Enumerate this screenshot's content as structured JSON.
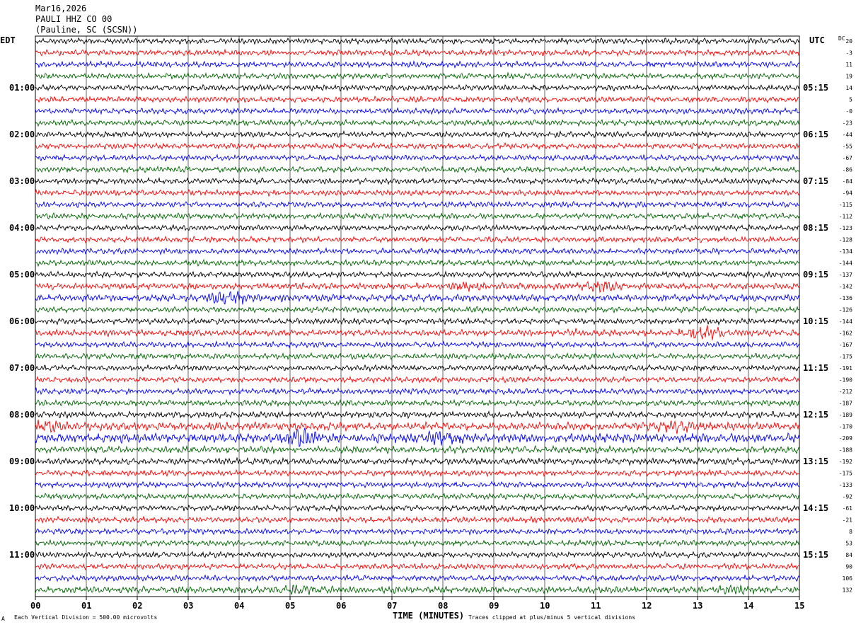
{
  "header": {
    "date": "Mar16,2026",
    "station": "PAULI HHZ CO 00",
    "location": "(Pauline, SC (SCSN))"
  },
  "left_axis_label": "EDT",
  "right_axis_label": "UTC",
  "dc_label": "DC",
  "footer": {
    "xlabel": "TIME (MINUTES)",
    "scale": "Each Vertical Division =  500.00 microvolts",
    "clip": "Traces clipped at plus/minus 5 vertical divisions",
    "mark": "A"
  },
  "colors": {
    "trace_cycle": [
      "#000000",
      "#ff0000",
      "#0000ff",
      "#006400"
    ],
    "grid": "#000000"
  },
  "chart_data": {
    "type": "helicorder",
    "x_ticks": [
      "00",
      "01",
      "02",
      "03",
      "04",
      "05",
      "06",
      "07",
      "08",
      "09",
      "10",
      "11",
      "12",
      "13",
      "14",
      "15"
    ],
    "xlim": [
      0,
      15
    ],
    "minutes_per_line": 15,
    "num_lines": 48,
    "left_hour_labels": [
      "01:00",
      "02:00",
      "03:00",
      "04:00",
      "05:00",
      "06:00",
      "07:00",
      "08:00",
      "09:00",
      "10:00",
      "11:00"
    ],
    "right_hour_labels": [
      "05:15",
      "06:15",
      "07:15",
      "08:15",
      "09:15",
      "10:15",
      "11:15",
      "12:15",
      "13:15",
      "14:15",
      "15:15"
    ],
    "hour_label_lines": [
      4,
      8,
      12,
      16,
      20,
      24,
      28,
      32,
      36,
      40,
      44
    ],
    "dc_offsets": [
      "20",
      "-3",
      "11",
      "19",
      "14",
      "5",
      "-0",
      "-23",
      "-44",
      "-55",
      "-67",
      "-86",
      "-84",
      "-94",
      "-115",
      "-112",
      "-123",
      "-128",
      "-134",
      "-144",
      "-137",
      "-142",
      "-136",
      "-126",
      "-144",
      "-162",
      "-167",
      "-175",
      "-191",
      "-190",
      "-212",
      "-187",
      "-189",
      "-170",
      "-209",
      "-188",
      "-192",
      "-175",
      "-133",
      "-92",
      "-61",
      "-21",
      "8",
      "53",
      "84",
      "90",
      "106",
      "132"
    ],
    "trace_amplitude_relative": [
      1,
      1,
      1,
      1,
      1,
      1,
      1,
      1,
      1,
      1,
      1,
      1,
      1,
      1,
      1,
      1,
      1,
      1,
      1,
      1,
      1,
      1.1,
      1.2,
      1,
      1,
      1.1,
      1,
      1,
      1,
      1,
      1,
      1,
      1.1,
      1.4,
      1.6,
      1.2,
      1.1,
      1,
      1,
      1,
      1,
      1,
      1,
      1,
      1,
      1,
      1,
      1.2
    ],
    "events": [
      {
        "line": 22,
        "minute": 3.8,
        "strength": 2.5
      },
      {
        "line": 21,
        "minute": 8.5,
        "strength": 1.8
      },
      {
        "line": 21,
        "minute": 11.1,
        "strength": 2.0
      },
      {
        "line": 25,
        "minute": 13.1,
        "strength": 2.6
      },
      {
        "line": 25,
        "minute": 10.4,
        "strength": 1.6
      },
      {
        "line": 34,
        "minute": 5.2,
        "strength": 2.2
      },
      {
        "line": 34,
        "minute": 8.0,
        "strength": 1.8
      },
      {
        "line": 33,
        "minute": 0.2,
        "strength": 1.8
      },
      {
        "line": 33,
        "minute": 12.6,
        "strength": 1.8
      },
      {
        "line": 47,
        "minute": 5.2,
        "strength": 1.6
      },
      {
        "line": 47,
        "minute": 13.8,
        "strength": 1.6
      }
    ]
  }
}
